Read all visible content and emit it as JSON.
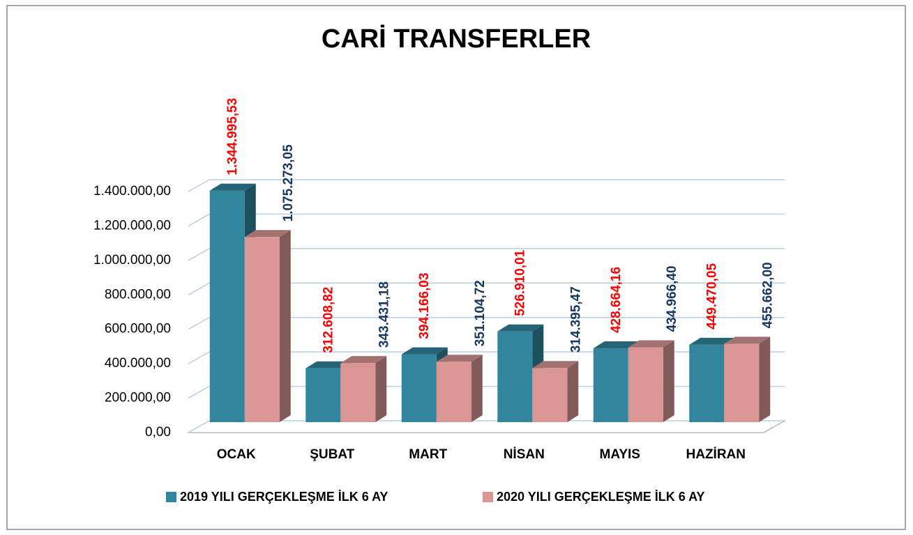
{
  "chart_data": {
    "type": "bar3d",
    "title": "CARİ TRANSFERLER",
    "categories": [
      "OCAK",
      "ŞUBAT",
      "MART",
      "NİSAN",
      "MAYIS",
      "HAZİRAN"
    ],
    "series": [
      {
        "name": "2019 YILI GERÇEKLEŞME İLK 6 AY",
        "color": "#31859c",
        "label_color": "#ff0000",
        "values": [
          1344995.53,
          312608.82,
          394166.03,
          526910.01,
          428664.16,
          449470.05
        ],
        "value_labels": [
          "1.344.995,53",
          "312.608,82",
          "394.166,03",
          "526.910,01",
          "428.664,16",
          "449.470,05"
        ]
      },
      {
        "name": "2020 YILI GERÇEKLEŞME İLK 6 AY",
        "color": "#d99694",
        "label_color": "#17375e",
        "values": [
          1075273.05,
          343431.18,
          351104.72,
          314395.47,
          434966.4,
          455662.0
        ],
        "value_labels": [
          "1.075.273,05",
          "343.431,18",
          "351.104,72",
          "314.395,47",
          "434.966,40",
          "455.662,00"
        ]
      }
    ],
    "ylim": [
      0,
      1400000
    ],
    "yticks": [
      {
        "value": 0,
        "label": "0,00"
      },
      {
        "value": 200000,
        "label": "200.000,00"
      },
      {
        "value": 400000,
        "label": "400.000,00"
      },
      {
        "value": 600000,
        "label": "600.000,00"
      },
      {
        "value": 800000,
        "label": "800.000,00"
      },
      {
        "value": 1000000,
        "label": "1.000.000,00"
      },
      {
        "value": 1200000,
        "label": "1.200.000,00"
      },
      {
        "value": 1400000,
        "label": "1.400.000,00"
      }
    ],
    "grid": true,
    "legend": "bottom"
  }
}
